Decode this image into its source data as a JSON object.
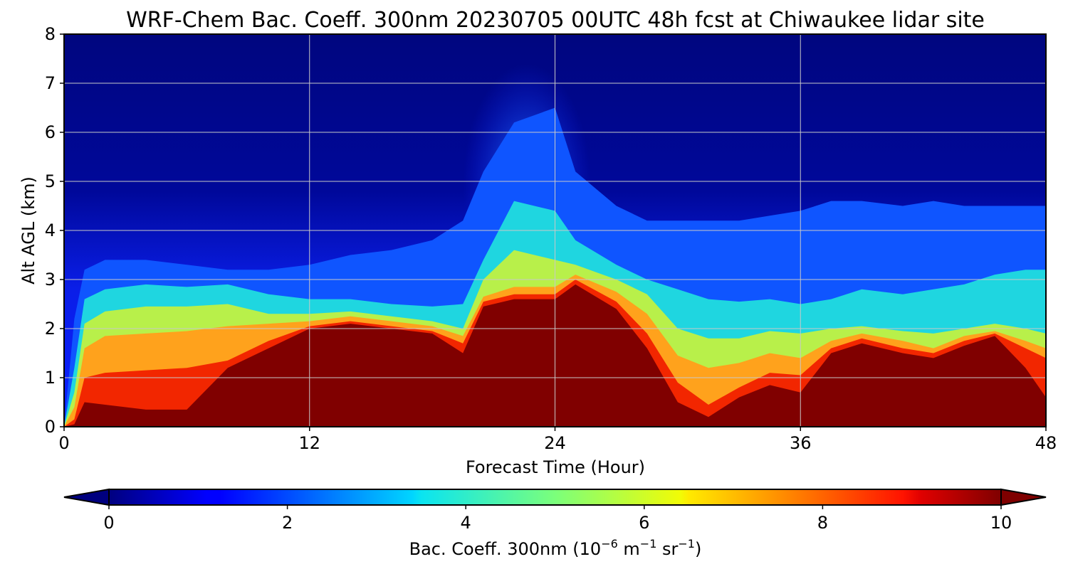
{
  "chart_data": {
    "type": "heatmap",
    "title": "WRF-Chem Bac. Coeff. 300nm  20230705 00UTC 48h fcst at Chiwaukee lidar site",
    "xlabel": "Forecast Time (Hour)",
    "ylabel": "Alt AGL (km)",
    "xlim": [
      0,
      48
    ],
    "ylim": [
      0,
      8
    ],
    "x_ticks": [
      0,
      12,
      24,
      36,
      48
    ],
    "y_ticks": [
      0,
      1,
      2,
      3,
      4,
      5,
      6,
      7,
      8
    ],
    "grid": true,
    "colormap": "jet",
    "colorbar": {
      "label_prefix": "Bac. Coeff. 300nm  (10",
      "label_exp1": "−6",
      "label_mid": " m",
      "label_exp2": "−1",
      "label_mid2": " sr",
      "label_exp3": "−1",
      "label_suffix": ")",
      "range": [
        0,
        10
      ],
      "ticks": [
        0,
        2,
        4,
        6,
        8,
        10
      ],
      "extend": "both",
      "orientation": "horizontal"
    },
    "x": [
      0,
      0.5,
      1,
      2,
      4,
      6,
      8,
      10,
      12,
      14,
      16,
      18,
      19.5,
      20.5,
      22,
      24,
      25,
      27,
      28.5,
      30,
      31.5,
      33,
      34.5,
      36,
      37.5,
      39,
      41,
      42.5,
      44,
      45.5,
      47,
      48
    ],
    "series": [
      {
        "name": "dark_red_top_km",
        "values": [
          0,
          0.05,
          0.5,
          0.45,
          0.35,
          0.35,
          1.2,
          1.6,
          2.0,
          2.1,
          2.0,
          1.9,
          1.5,
          2.45,
          2.6,
          2.6,
          2.9,
          2.4,
          1.6,
          0.5,
          0.2,
          0.6,
          0.85,
          0.7,
          1.5,
          1.7,
          1.5,
          1.4,
          1.65,
          1.85,
          1.2,
          0.6
        ]
      },
      {
        "name": "red_top_km",
        "values": [
          0,
          0.15,
          1.0,
          1.1,
          1.15,
          1.2,
          1.35,
          1.75,
          2.05,
          2.15,
          2.05,
          1.95,
          1.7,
          2.55,
          2.7,
          2.7,
          3.0,
          2.55,
          1.9,
          0.9,
          0.45,
          0.8,
          1.1,
          1.05,
          1.6,
          1.8,
          1.6,
          1.5,
          1.75,
          1.9,
          1.6,
          1.4
        ]
      },
      {
        "name": "orange_top_km",
        "values": [
          0,
          0.4,
          1.6,
          1.85,
          1.9,
          1.95,
          2.05,
          2.1,
          2.15,
          2.25,
          2.15,
          2.05,
          1.85,
          2.65,
          2.85,
          2.85,
          3.1,
          2.75,
          2.3,
          1.45,
          1.2,
          1.3,
          1.5,
          1.4,
          1.75,
          1.9,
          1.75,
          1.6,
          1.85,
          1.95,
          1.75,
          1.6
        ]
      },
      {
        "name": "yellow_top_km",
        "values": [
          0,
          0.7,
          2.1,
          2.35,
          2.45,
          2.45,
          2.5,
          2.3,
          2.3,
          2.35,
          2.25,
          2.15,
          2.0,
          3.0,
          3.6,
          3.4,
          3.3,
          3.0,
          2.7,
          2.0,
          1.8,
          1.8,
          1.95,
          1.9,
          2.0,
          2.05,
          1.95,
          1.9,
          2.0,
          2.1,
          2.0,
          1.9
        ]
      },
      {
        "name": "cyan_top_km",
        "values": [
          0,
          1.2,
          2.6,
          2.8,
          2.9,
          2.85,
          2.9,
          2.7,
          2.6,
          2.6,
          2.5,
          2.45,
          2.5,
          3.4,
          4.6,
          4.4,
          3.8,
          3.3,
          3.0,
          2.8,
          2.6,
          2.55,
          2.6,
          2.5,
          2.6,
          2.8,
          2.7,
          2.8,
          2.9,
          3.1,
          3.2,
          3.2
        ]
      },
      {
        "name": "blue_top_km",
        "values": [
          0,
          2.2,
          3.2,
          3.4,
          3.4,
          3.3,
          3.2,
          3.2,
          3.3,
          3.5,
          3.6,
          3.8,
          4.2,
          5.2,
          6.2,
          6.5,
          5.2,
          4.5,
          4.2,
          4.2,
          4.2,
          4.2,
          4.3,
          4.4,
          4.6,
          4.6,
          4.5,
          4.6,
          4.5,
          4.5,
          4.5,
          4.5
        ]
      }
    ]
  }
}
